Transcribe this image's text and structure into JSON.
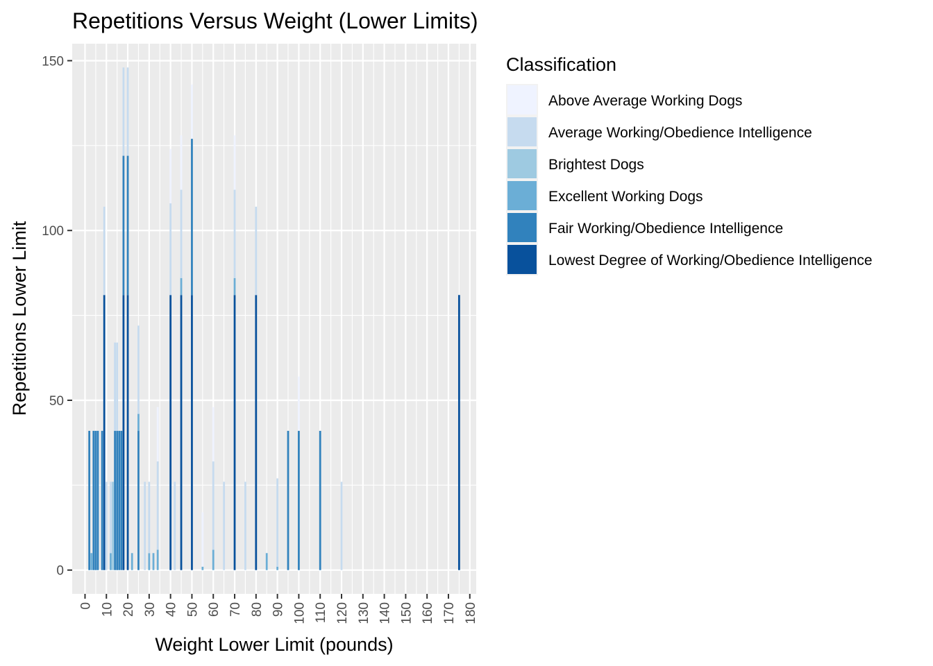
{
  "chart_data": {
    "type": "bar",
    "stacked": true,
    "title": "Repetitions Versus Weight (Lower Limits)",
    "xlabel": "Weight Lower Limit (pounds)",
    "ylabel": "Repetitions Lower Limit",
    "xlim": [
      -6,
      183
    ],
    "ylim": [
      -7,
      155
    ],
    "x_ticks": [
      0,
      10,
      20,
      30,
      40,
      50,
      60,
      70,
      80,
      90,
      100,
      110,
      120,
      130,
      140,
      150,
      160,
      170,
      180
    ],
    "y_ticks": [
      0,
      50,
      100,
      150
    ],
    "grid": true,
    "legend": {
      "title": "Classification",
      "placement": "right",
      "entries": [
        {
          "label": "Above Average Working Dogs",
          "color": "#eff3ff"
        },
        {
          "label": "Average Working/Obedience Intelligence",
          "color": "#c6dbef"
        },
        {
          "label": "Brightest Dogs",
          "color": "#9ecae1"
        },
        {
          "label": "Excellent Working Dogs",
          "color": "#6baed6"
        },
        {
          "label": "Fair Working/Obedience Intelligence",
          "color": "#3182bd"
        },
        {
          "label": "Lowest Degree of Working/Obedience Intelligence",
          "color": "#08519c"
        }
      ]
    },
    "bars": [
      {
        "x": 2,
        "segments": [
          [
            4,
            41
          ]
        ]
      },
      {
        "x": 3,
        "segments": [
          [
            3,
            5
          ]
        ]
      },
      {
        "x": 4,
        "segments": [
          [
            4,
            41
          ]
        ]
      },
      {
        "x": 5,
        "segments": [
          [
            4,
            41
          ]
        ]
      },
      {
        "x": 6,
        "segments": [
          [
            4,
            41
          ]
        ]
      },
      {
        "x": 8,
        "segments": [
          [
            4,
            41
          ]
        ]
      },
      {
        "x": 9,
        "segments": [
          [
            5,
            81
          ],
          [
            1,
            26
          ]
        ]
      },
      {
        "x": 10,
        "segments": [
          [
            1,
            26
          ]
        ]
      },
      {
        "x": 12,
        "segments": [
          [
            3,
            5
          ],
          [
            1,
            21
          ]
        ]
      },
      {
        "x": 13,
        "segments": [
          [
            2,
            26
          ]
        ]
      },
      {
        "x": 14,
        "segments": [
          [
            4,
            41
          ],
          [
            1,
            26
          ]
        ]
      },
      {
        "x": 15,
        "segments": [
          [
            4,
            41
          ],
          [
            1,
            26
          ]
        ]
      },
      {
        "x": 16,
        "segments": [
          [
            4,
            41
          ]
        ]
      },
      {
        "x": 17,
        "segments": [
          [
            4,
            41
          ]
        ]
      },
      {
        "x": 18,
        "segments": [
          [
            5,
            81
          ],
          [
            4,
            41
          ],
          [
            1,
            26
          ]
        ]
      },
      {
        "x": 20,
        "segments": [
          [
            5,
            81
          ],
          [
            4,
            41
          ],
          [
            1,
            26
          ]
        ]
      },
      {
        "x": 22,
        "segments": [
          [
            3,
            5
          ]
        ]
      },
      {
        "x": 25,
        "segments": [
          [
            4,
            41
          ],
          [
            3,
            5
          ],
          [
            1,
            26
          ]
        ]
      },
      {
        "x": 28,
        "segments": [
          [
            1,
            26
          ]
        ]
      },
      {
        "x": 30,
        "segments": [
          [
            3,
            5
          ],
          [
            1,
            21
          ]
        ]
      },
      {
        "x": 32,
        "segments": [
          [
            3,
            5
          ]
        ]
      },
      {
        "x": 34,
        "segments": [
          [
            3,
            6
          ],
          [
            1,
            26
          ],
          [
            0,
            16
          ]
        ]
      },
      {
        "x": 40,
        "segments": [
          [
            5,
            81
          ],
          [
            1,
            27
          ],
          [
            0,
            16
          ]
        ]
      },
      {
        "x": 42,
        "segments": [
          [
            1,
            26
          ]
        ]
      },
      {
        "x": 45,
        "segments": [
          [
            5,
            81
          ],
          [
            3,
            5
          ],
          [
            1,
            26
          ],
          [
            0,
            16
          ]
        ]
      },
      {
        "x": 50,
        "segments": [
          [
            5,
            81
          ],
          [
            4,
            46
          ],
          [
            0,
            16
          ]
        ]
      },
      {
        "x": 55,
        "segments": [
          [
            3,
            1
          ],
          [
            0,
            16
          ]
        ]
      },
      {
        "x": 60,
        "segments": [
          [
            3,
            6
          ],
          [
            1,
            26
          ],
          [
            0,
            16
          ]
        ]
      },
      {
        "x": 65,
        "segments": [
          [
            1,
            26
          ]
        ]
      },
      {
        "x": 70,
        "segments": [
          [
            5,
            81
          ],
          [
            3,
            5
          ],
          [
            1,
            26
          ],
          [
            0,
            16
          ]
        ]
      },
      {
        "x": 75,
        "segments": [
          [
            1,
            26
          ]
        ]
      },
      {
        "x": 80,
        "segments": [
          [
            5,
            81
          ],
          [
            1,
            26
          ]
        ]
      },
      {
        "x": 85,
        "segments": [
          [
            3,
            5
          ]
        ]
      },
      {
        "x": 90,
        "segments": [
          [
            3,
            1
          ],
          [
            1,
            26
          ]
        ]
      },
      {
        "x": 95,
        "segments": [
          [
            4,
            41
          ]
        ]
      },
      {
        "x": 100,
        "segments": [
          [
            4,
            41
          ],
          [
            0,
            16
          ]
        ]
      },
      {
        "x": 110,
        "segments": [
          [
            4,
            41
          ]
        ]
      },
      {
        "x": 120,
        "segments": [
          [
            1,
            26
          ]
        ]
      },
      {
        "x": 175,
        "segments": [
          [
            5,
            81
          ]
        ]
      }
    ]
  }
}
